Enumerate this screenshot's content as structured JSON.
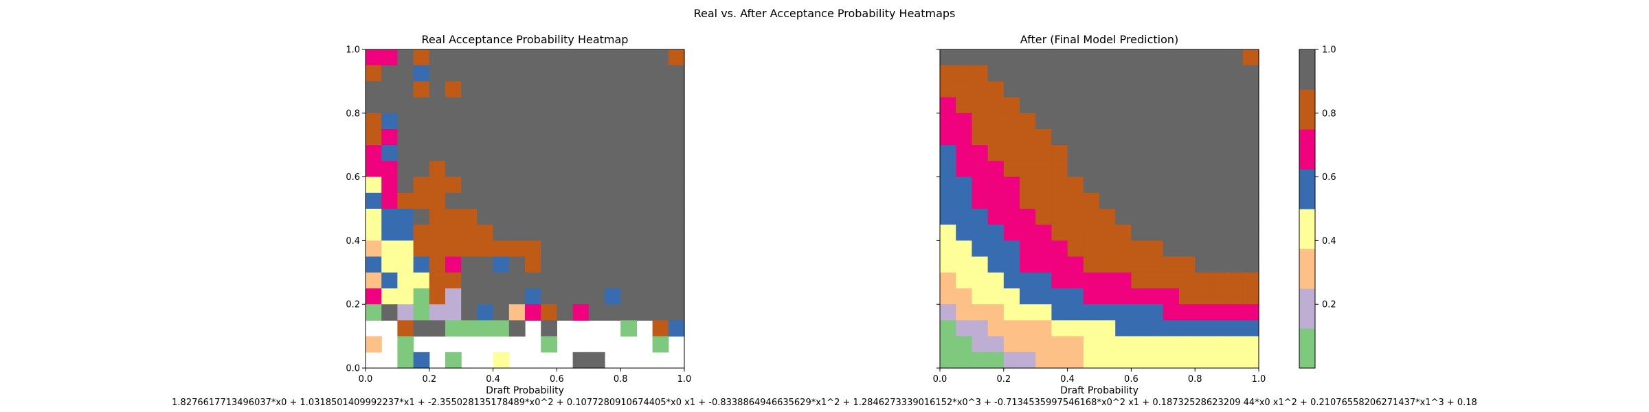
{
  "figure": {
    "suptitle": "Real vs. After Acceptance Probability Heatmaps",
    "formula": "1.8276617713496037*x0 + 1.0318501409992237*x1 + -2.355028135178489*x0^2 + 0.1077280910674405*x0 x1 + -0.8338864946635629*x1^2 + 1.2846273339016152*x0^3 + -0.7134535997546168*x0^2 x1 + 0.18732528623209 44*x0 x1^2 + 0.21076558206271437*x1^3 + 0.18"
  },
  "palette": [
    "#7fc97f",
    "#beaed4",
    "#fdc086",
    "#ffff99",
    "#386cb0",
    "#f0027f",
    "#bf5b17",
    "#666666"
  ],
  "chart_data": [
    {
      "type": "heatmap",
      "title": "Real Acceptance Probability Heatmap",
      "xlabel": "Draft Probability",
      "ylabel": "",
      "xlim": [
        0,
        1
      ],
      "ylim": [
        0,
        1
      ],
      "xticks": [
        "0.0",
        "0.2",
        "0.4",
        "0.6",
        "0.8",
        "1.0"
      ],
      "yticks": [
        "0.0",
        "0.2",
        "0.4",
        "0.6",
        "0.8",
        "1.0"
      ],
      "grid": false,
      "cell_size": 0.05,
      "note": "rows listed from top (y 0.95-1.00) to bottom (y 0.00-0.05); 0-7 = palette band index, -1 = empty",
      "bins": [
        [
          5,
          5,
          7,
          6,
          7,
          7,
          7,
          7,
          7,
          7,
          7,
          7,
          7,
          7,
          7,
          7,
          7,
          7,
          7,
          6
        ],
        [
          6,
          7,
          7,
          4,
          7,
          7,
          7,
          7,
          7,
          7,
          7,
          7,
          7,
          7,
          7,
          7,
          7,
          7,
          7,
          7
        ],
        [
          7,
          7,
          7,
          6,
          7,
          6,
          7,
          7,
          7,
          7,
          7,
          7,
          7,
          7,
          7,
          7,
          7,
          7,
          7,
          7
        ],
        [
          7,
          7,
          7,
          7,
          7,
          7,
          7,
          7,
          7,
          7,
          7,
          7,
          7,
          7,
          7,
          7,
          7,
          7,
          7,
          7
        ],
        [
          6,
          4,
          7,
          7,
          7,
          7,
          7,
          7,
          7,
          7,
          7,
          7,
          7,
          7,
          7,
          7,
          7,
          7,
          7,
          7
        ],
        [
          6,
          5,
          7,
          7,
          7,
          7,
          7,
          7,
          7,
          7,
          7,
          7,
          7,
          7,
          7,
          7,
          7,
          7,
          7,
          7
        ],
        [
          5,
          4,
          7,
          7,
          7,
          7,
          7,
          7,
          7,
          7,
          7,
          7,
          7,
          7,
          7,
          7,
          7,
          7,
          7,
          7
        ],
        [
          5,
          5,
          7,
          7,
          6,
          7,
          7,
          7,
          7,
          7,
          7,
          7,
          7,
          7,
          7,
          7,
          7,
          7,
          7,
          7
        ],
        [
          3,
          5,
          7,
          6,
          6,
          6,
          7,
          7,
          7,
          7,
          7,
          7,
          7,
          7,
          7,
          7,
          7,
          7,
          7,
          7
        ],
        [
          4,
          5,
          6,
          6,
          6,
          7,
          7,
          7,
          7,
          7,
          7,
          7,
          7,
          7,
          7,
          7,
          7,
          7,
          7,
          7
        ],
        [
          3,
          4,
          4,
          7,
          6,
          6,
          6,
          7,
          7,
          7,
          7,
          7,
          7,
          7,
          7,
          7,
          7,
          7,
          7,
          7
        ],
        [
          3,
          4,
          4,
          6,
          6,
          6,
          6,
          6,
          7,
          7,
          7,
          7,
          7,
          7,
          7,
          7,
          7,
          7,
          7,
          7
        ],
        [
          2,
          3,
          3,
          6,
          6,
          6,
          6,
          6,
          6,
          6,
          6,
          7,
          7,
          7,
          7,
          7,
          7,
          7,
          7,
          7
        ],
        [
          4,
          3,
          3,
          4,
          6,
          5,
          7,
          7,
          4,
          7,
          6,
          7,
          7,
          7,
          7,
          7,
          7,
          7,
          7,
          7
        ],
        [
          2,
          4,
          3,
          3,
          6,
          6,
          7,
          7,
          7,
          7,
          7,
          7,
          7,
          7,
          7,
          7,
          7,
          7,
          7,
          7
        ],
        [
          5,
          3,
          3,
          0,
          6,
          1,
          7,
          7,
          7,
          7,
          4,
          7,
          7,
          7,
          7,
          4,
          7,
          7,
          7,
          7
        ],
        [
          0,
          7,
          1,
          0,
          1,
          1,
          7,
          4,
          7,
          2,
          5,
          6,
          7,
          5,
          7,
          7,
          7,
          7,
          7,
          7
        ],
        [
          -1,
          -1,
          6,
          7,
          7,
          0,
          0,
          0,
          0,
          7,
          -1,
          7,
          -1,
          -1,
          -1,
          -1,
          0,
          -1,
          6,
          4
        ],
        [
          2,
          -1,
          0,
          -1,
          -1,
          -1,
          -1,
          -1,
          -1,
          -1,
          -1,
          0,
          -1,
          -1,
          -1,
          -1,
          -1,
          -1,
          0,
          -1
        ],
        [
          -1,
          -1,
          0,
          4,
          -1,
          0,
          -1,
          -1,
          3,
          -1,
          -1,
          -1,
          -1,
          7,
          7,
          -1,
          -1,
          -1,
          -1,
          -1
        ]
      ]
    },
    {
      "type": "heatmap",
      "title": "After (Final Model Prediction)",
      "xlabel": "Draft Probability",
      "ylabel": "",
      "xlim": [
        0,
        1
      ],
      "ylim": [
        0,
        1
      ],
      "xticks": [
        "0.0",
        "0.2",
        "0.4",
        "0.6",
        "0.8",
        "1.0"
      ],
      "grid": false,
      "cell_size": 0.05,
      "note": "rows listed from top (y 0.95-1.00) to bottom (y 0.00-0.05); 0-7 = palette band index",
      "bins": [
        [
          7,
          7,
          7,
          7,
          7,
          7,
          7,
          7,
          7,
          7,
          7,
          7,
          7,
          7,
          7,
          7,
          7,
          7,
          7,
          6
        ],
        [
          6,
          6,
          6,
          7,
          7,
          7,
          7,
          7,
          7,
          7,
          7,
          7,
          7,
          7,
          7,
          7,
          7,
          7,
          7,
          7
        ],
        [
          6,
          6,
          6,
          6,
          7,
          7,
          7,
          7,
          7,
          7,
          7,
          7,
          7,
          7,
          7,
          7,
          7,
          7,
          7,
          7
        ],
        [
          5,
          6,
          6,
          6,
          6,
          7,
          7,
          7,
          7,
          7,
          7,
          7,
          7,
          7,
          7,
          7,
          7,
          7,
          7,
          7
        ],
        [
          5,
          5,
          6,
          6,
          6,
          6,
          7,
          7,
          7,
          7,
          7,
          7,
          7,
          7,
          7,
          7,
          7,
          7,
          7,
          7
        ],
        [
          5,
          5,
          6,
          6,
          6,
          6,
          6,
          7,
          7,
          7,
          7,
          7,
          7,
          7,
          7,
          7,
          7,
          7,
          7,
          7
        ],
        [
          4,
          5,
          5,
          6,
          6,
          6,
          6,
          6,
          7,
          7,
          7,
          7,
          7,
          7,
          7,
          7,
          7,
          7,
          7,
          7
        ],
        [
          4,
          5,
          5,
          5,
          6,
          6,
          6,
          6,
          7,
          7,
          7,
          7,
          7,
          7,
          7,
          7,
          7,
          7,
          7,
          7
        ],
        [
          4,
          4,
          5,
          5,
          5,
          6,
          6,
          6,
          6,
          7,
          7,
          7,
          7,
          7,
          7,
          7,
          7,
          7,
          7,
          7
        ],
        [
          4,
          4,
          5,
          5,
          5,
          6,
          6,
          6,
          6,
          6,
          7,
          7,
          7,
          7,
          7,
          7,
          7,
          7,
          7,
          7
        ],
        [
          4,
          4,
          4,
          5,
          5,
          5,
          6,
          6,
          6,
          6,
          6,
          7,
          7,
          7,
          7,
          7,
          7,
          7,
          7,
          7
        ],
        [
          3,
          4,
          4,
          4,
          5,
          5,
          5,
          6,
          6,
          6,
          6,
          6,
          7,
          7,
          7,
          7,
          7,
          7,
          7,
          7
        ],
        [
          3,
          3,
          4,
          4,
          4,
          5,
          5,
          5,
          6,
          6,
          6,
          6,
          6,
          6,
          7,
          7,
          7,
          7,
          7,
          7
        ],
        [
          3,
          3,
          3,
          4,
          4,
          5,
          5,
          5,
          5,
          6,
          6,
          6,
          6,
          6,
          6,
          6,
          7,
          7,
          7,
          7
        ],
        [
          2,
          3,
          3,
          3,
          4,
          4,
          4,
          5,
          5,
          5,
          5,
          5,
          6,
          6,
          6,
          6,
          6,
          6,
          6,
          6
        ],
        [
          2,
          2,
          3,
          3,
          3,
          4,
          4,
          4,
          4,
          5,
          5,
          5,
          5,
          5,
          5,
          6,
          6,
          6,
          6,
          6
        ],
        [
          1,
          2,
          2,
          2,
          3,
          3,
          3,
          4,
          4,
          4,
          4,
          4,
          4,
          4,
          5,
          5,
          5,
          5,
          5,
          5
        ],
        [
          0,
          1,
          1,
          2,
          2,
          2,
          2,
          3,
          3,
          3,
          3,
          4,
          4,
          4,
          4,
          4,
          4,
          4,
          4,
          4
        ],
        [
          0,
          0,
          1,
          1,
          2,
          2,
          2,
          2,
          2,
          3,
          3,
          3,
          3,
          3,
          3,
          3,
          3,
          3,
          3,
          3
        ],
        [
          0,
          0,
          0,
          0,
          1,
          1,
          2,
          2,
          2,
          3,
          3,
          3,
          3,
          3,
          3,
          3,
          3,
          3,
          3,
          3
        ]
      ]
    }
  ],
  "colorbar": {
    "colors": [
      "#7fc97f",
      "#beaed4",
      "#fdc086",
      "#ffff99",
      "#386cb0",
      "#f0027f",
      "#bf5b17",
      "#666666"
    ],
    "range": [
      0,
      1
    ],
    "ticks": [
      "0.2",
      "0.4",
      "0.6",
      "0.8",
      "1.0"
    ]
  }
}
